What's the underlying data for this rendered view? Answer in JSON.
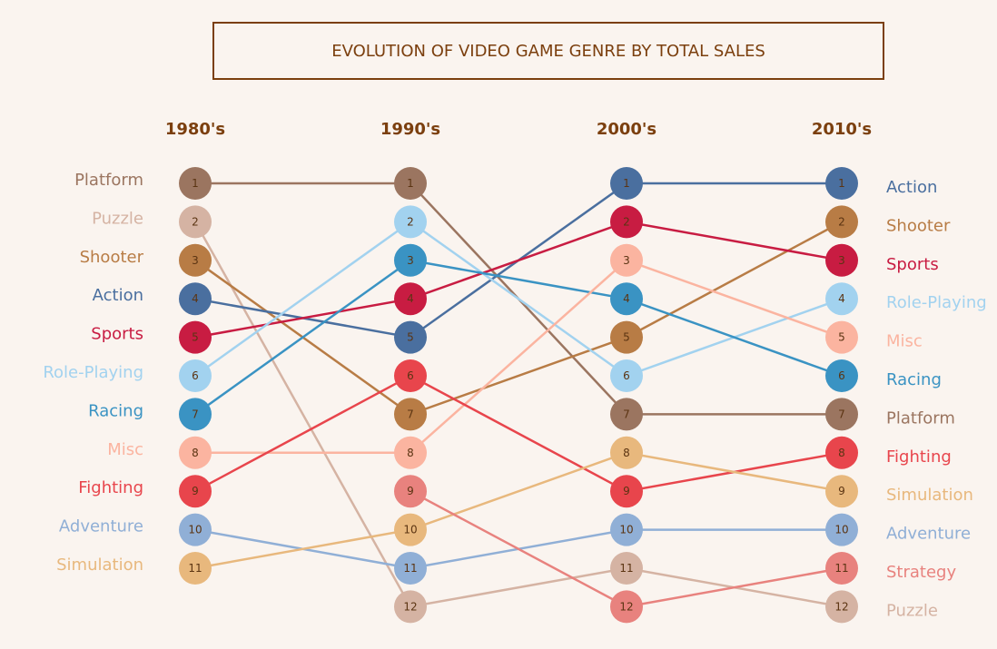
{
  "chart_data": {
    "type": "bump",
    "title": "EVOLUTION OF VIDEO GAME GENRE BY TOTAL SALES",
    "decades": [
      "1980's",
      "1990's",
      "2000's",
      "2010's"
    ],
    "rank_labels": [
      "1",
      "2",
      "3",
      "4",
      "5",
      "6",
      "7",
      "8",
      "9",
      "10",
      "11",
      "12"
    ],
    "series": [
      {
        "name": "Platform",
        "color": "#9b7560",
        "ranks": [
          1,
          1,
          7,
          7
        ]
      },
      {
        "name": "Puzzle",
        "color": "#d5b3a3",
        "ranks": [
          2,
          12,
          11,
          12
        ]
      },
      {
        "name": "Shooter",
        "color": "#b87c45",
        "ranks": [
          3,
          7,
          5,
          2
        ]
      },
      {
        "name": "Action",
        "color": "#4a6f9f",
        "ranks": [
          4,
          5,
          1,
          1
        ]
      },
      {
        "name": "Sports",
        "color": "#c81c42",
        "ranks": [
          5,
          4,
          2,
          3
        ]
      },
      {
        "name": "Role-Playing",
        "color": "#a2d2ef",
        "ranks": [
          6,
          2,
          6,
          4
        ]
      },
      {
        "name": "Racing",
        "color": "#3a93c3",
        "ranks": [
          7,
          3,
          4,
          6
        ]
      },
      {
        "name": "Misc",
        "color": "#fbb4a0",
        "ranks": [
          8,
          8,
          3,
          5
        ]
      },
      {
        "name": "Fighting",
        "color": "#e8454c",
        "ranks": [
          9,
          6,
          9,
          8
        ]
      },
      {
        "name": "Adventure",
        "color": "#90afd6",
        "ranks": [
          10,
          11,
          10,
          10
        ]
      },
      {
        "name": "Simulation",
        "color": "#e8b87d",
        "ranks": [
          11,
          10,
          8,
          9
        ]
      },
      {
        "name": "Strategy",
        "color": "#e8827e",
        "ranks": [
          null,
          9,
          12,
          11
        ]
      }
    ]
  }
}
